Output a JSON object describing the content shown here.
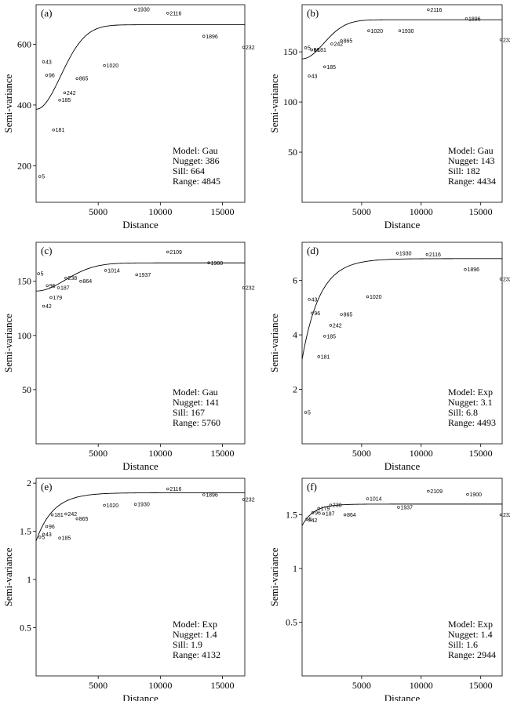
{
  "chart_data": [
    {
      "panel": "(a)",
      "type": "scatter",
      "xlabel": "Distance",
      "ylabel": "Semi-variance",
      "xlim": [
        0,
        16800
      ],
      "ylim": [
        80,
        730
      ],
      "xticks": [
        5000,
        10000,
        15000
      ],
      "yticks": [
        200,
        400,
        600
      ],
      "model": {
        "kind": "gau",
        "nugget": 386,
        "sill": 664,
        "range": 4845
      },
      "annotation": [
        "Model: Gau",
        "Nugget: 386",
        "Sill: 664",
        "Range: 4845"
      ],
      "points": [
        {
          "x": 300,
          "y": 165,
          "label": "5"
        },
        {
          "x": 600,
          "y": 542,
          "label": "43"
        },
        {
          "x": 850,
          "y": 498,
          "label": "96"
        },
        {
          "x": 1400,
          "y": 318,
          "label": "181"
        },
        {
          "x": 1900,
          "y": 416,
          "label": "185"
        },
        {
          "x": 2300,
          "y": 440,
          "label": "242"
        },
        {
          "x": 3300,
          "y": 487,
          "label": "865"
        },
        {
          "x": 5500,
          "y": 530,
          "label": "1020"
        },
        {
          "x": 8000,
          "y": 714,
          "label": "1930"
        },
        {
          "x": 10600,
          "y": 702,
          "label": "2116"
        },
        {
          "x": 13500,
          "y": 626,
          "label": "1896"
        },
        {
          "x": 16700,
          "y": 590,
          "label": "232"
        }
      ]
    },
    {
      "panel": "(b)",
      "type": "scatter",
      "xlabel": "Distance",
      "ylabel": "Semi-variance",
      "xlim": [
        0,
        16800
      ],
      "ylim": [
        0,
        197
      ],
      "xticks": [
        5000,
        10000,
        15000
      ],
      "yticks": [
        50,
        100,
        150
      ],
      "model": {
        "kind": "gau",
        "nugget": 143,
        "sill": 182,
        "range": 4434
      },
      "annotation": [
        "Model: Gau",
        "Nugget: 143",
        "Sill: 182",
        "Range: 4434"
      ],
      "points": [
        {
          "x": 300,
          "y": 154,
          "label": "5"
        },
        {
          "x": 600,
          "y": 126,
          "label": "43"
        },
        {
          "x": 800,
          "y": 152,
          "label": "96"
        },
        {
          "x": 1100,
          "y": 152,
          "label": "181"
        },
        {
          "x": 1900,
          "y": 135,
          "label": "185"
        },
        {
          "x": 2500,
          "y": 158,
          "label": "242"
        },
        {
          "x": 3300,
          "y": 161,
          "label": "865"
        },
        {
          "x": 5600,
          "y": 171,
          "label": "1020"
        },
        {
          "x": 8200,
          "y": 171,
          "label": "1930"
        },
        {
          "x": 10600,
          "y": 192,
          "label": "2116"
        },
        {
          "x": 13800,
          "y": 183,
          "label": "1896"
        },
        {
          "x": 16700,
          "y": 162,
          "label": "232"
        }
      ]
    },
    {
      "panel": "(c)",
      "type": "scatter",
      "xlabel": "Distance",
      "ylabel": "Semi-variance",
      "xlim": [
        0,
        16800
      ],
      "ylim": [
        0,
        186
      ],
      "xticks": [
        5000,
        10000,
        15000
      ],
      "yticks": [
        50,
        100,
        150
      ],
      "model": {
        "kind": "gau",
        "nugget": 141,
        "sill": 167,
        "range": 5760
      },
      "annotation": [
        "Model: Gau",
        "Nugget: 141",
        "Sill: 167",
        "Range: 5760"
      ],
      "points": [
        {
          "x": 200,
          "y": 157,
          "label": "5"
        },
        {
          "x": 600,
          "y": 127,
          "label": "42"
        },
        {
          "x": 900,
          "y": 146,
          "label": "96"
        },
        {
          "x": 1200,
          "y": 135,
          "label": "179"
        },
        {
          "x": 1800,
          "y": 144,
          "label": "187"
        },
        {
          "x": 2400,
          "y": 153,
          "label": "238"
        },
        {
          "x": 3600,
          "y": 150,
          "label": "864"
        },
        {
          "x": 5600,
          "y": 160,
          "label": "1014"
        },
        {
          "x": 8100,
          "y": 156,
          "label": "1937"
        },
        {
          "x": 10600,
          "y": 177,
          "label": "2109"
        },
        {
          "x": 13900,
          "y": 167,
          "label": "1900"
        },
        {
          "x": 16700,
          "y": 144,
          "label": "232"
        }
      ]
    },
    {
      "panel": "(d)",
      "type": "scatter",
      "xlabel": "Distance",
      "ylabel": "Semi-variance",
      "xlim": [
        0,
        16800
      ],
      "ylim": [
        0,
        7.4
      ],
      "xticks": [
        5000,
        10000,
        15000
      ],
      "yticks": [
        2,
        4,
        6
      ],
      "model": {
        "kind": "exp",
        "nugget": 3.1,
        "sill": 6.8,
        "range": 4493
      },
      "annotation": [
        "Model: Exp",
        "Nugget: 3.1",
        "Sill: 6.8",
        "Range: 4493"
      ],
      "points": [
        {
          "x": 300,
          "y": 1.15,
          "label": "5"
        },
        {
          "x": 600,
          "y": 5.3,
          "label": "43"
        },
        {
          "x": 850,
          "y": 4.8,
          "label": "96"
        },
        {
          "x": 1400,
          "y": 3.2,
          "label": "181"
        },
        {
          "x": 1900,
          "y": 3.95,
          "label": "185"
        },
        {
          "x": 2400,
          "y": 4.35,
          "label": "242"
        },
        {
          "x": 3300,
          "y": 4.75,
          "label": "865"
        },
        {
          "x": 5500,
          "y": 5.4,
          "label": "1020"
        },
        {
          "x": 8000,
          "y": 7.0,
          "label": "1930"
        },
        {
          "x": 10500,
          "y": 6.95,
          "label": "2116"
        },
        {
          "x": 13700,
          "y": 6.4,
          "label": "1896"
        },
        {
          "x": 16700,
          "y": 6.05,
          "label": "232"
        }
      ]
    },
    {
      "panel": "(e)",
      "type": "scatter",
      "xlabel": "Distance",
      "ylabel": "Semi-variance",
      "xlim": [
        0,
        16800
      ],
      "ylim": [
        0,
        2.05
      ],
      "xticks": [
        5000,
        10000,
        15000
      ],
      "yticks": [
        0.5,
        1.0,
        1.5,
        2.0
      ],
      "model": {
        "kind": "exp",
        "nugget": 1.4,
        "sill": 1.9,
        "range": 4132
      },
      "annotation": [
        "Model: Exp",
        "Nugget: 1.4",
        "Sill: 1.9",
        "Range: 4132"
      ],
      "points": [
        {
          "x": 300,
          "y": 1.44,
          "label": "5"
        },
        {
          "x": 600,
          "y": 1.47,
          "label": "43"
        },
        {
          "x": 850,
          "y": 1.55,
          "label": "96"
        },
        {
          "x": 1300,
          "y": 1.67,
          "label": "181"
        },
        {
          "x": 1900,
          "y": 1.43,
          "label": "185"
        },
        {
          "x": 2400,
          "y": 1.68,
          "label": "242"
        },
        {
          "x": 3300,
          "y": 1.63,
          "label": "865"
        },
        {
          "x": 5500,
          "y": 1.77,
          "label": "1020"
        },
        {
          "x": 8000,
          "y": 1.78,
          "label": "1930"
        },
        {
          "x": 10600,
          "y": 1.94,
          "label": "2116"
        },
        {
          "x": 13500,
          "y": 1.88,
          "label": "1896"
        },
        {
          "x": 16700,
          "y": 1.83,
          "label": "232"
        }
      ]
    },
    {
      "panel": "(f)",
      "type": "scatter",
      "xlabel": "Distance",
      "ylabel": "Semi-variance",
      "xlim": [
        0,
        16800
      ],
      "ylim": [
        0,
        1.84
      ],
      "xticks": [
        5000,
        10000,
        15000
      ],
      "yticks": [
        0.5,
        1.0,
        1.5
      ],
      "model": {
        "kind": "exp",
        "nugget": 1.4,
        "sill": 1.6,
        "range": 2944
      },
      "annotation": [
        "Model: Exp",
        "Nugget: 1.4",
        "Sill: 1.6",
        "Range: 2944"
      ],
      "points": [
        {
          "x": 400,
          "y": 1.46,
          "label": "5"
        },
        {
          "x": 600,
          "y": 1.45,
          "label": "42"
        },
        {
          "x": 900,
          "y": 1.52,
          "label": "96"
        },
        {
          "x": 1400,
          "y": 1.56,
          "label": "179"
        },
        {
          "x": 1800,
          "y": 1.51,
          "label": "187"
        },
        {
          "x": 2400,
          "y": 1.59,
          "label": "238"
        },
        {
          "x": 3600,
          "y": 1.5,
          "label": "864"
        },
        {
          "x": 5500,
          "y": 1.65,
          "label": "1014"
        },
        {
          "x": 8100,
          "y": 1.57,
          "label": "1937"
        },
        {
          "x": 10600,
          "y": 1.72,
          "label": "2109"
        },
        {
          "x": 13900,
          "y": 1.69,
          "label": "1900"
        },
        {
          "x": 16700,
          "y": 1.5,
          "label": "232"
        }
      ]
    }
  ]
}
